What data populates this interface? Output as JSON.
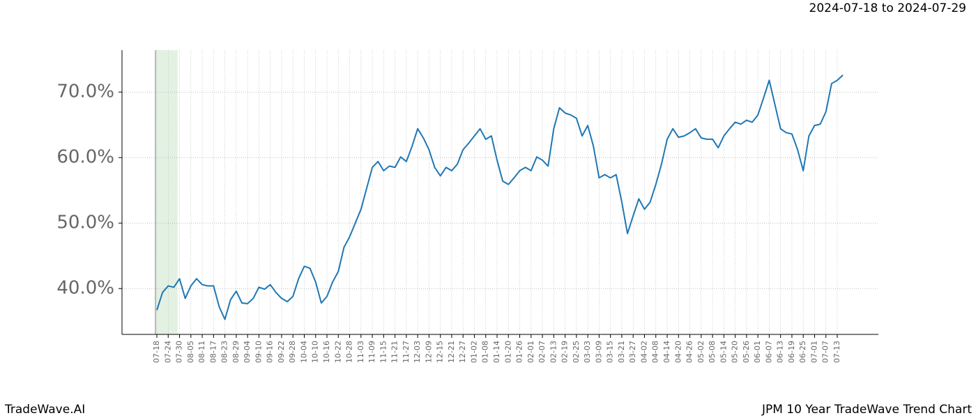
{
  "chart_data": {
    "type": "line",
    "title": "JPM 10 Year TradeWave Trend Chart",
    "subtitle": "2024-07-18 to 2024-07-29",
    "source": "TradeWave.AI",
    "categories": [
      "07-18",
      null,
      "07-24",
      null,
      "07-30",
      null,
      "08-05",
      null,
      "08-11",
      null,
      "08-17",
      null,
      "08-23",
      null,
      "08-29",
      null,
      "09-04",
      null,
      "09-10",
      null,
      "09-16",
      null,
      "09-22",
      null,
      "09-28",
      null,
      "10-04",
      null,
      "10-10",
      null,
      "10-16",
      null,
      "10-22",
      null,
      "10-28",
      null,
      "11-03",
      null,
      "11-09",
      null,
      "11-15",
      null,
      "11-21",
      null,
      "11-27",
      null,
      "12-03",
      null,
      "12-09",
      null,
      "12-15",
      null,
      "12-21",
      null,
      "12-27",
      null,
      "01-02",
      null,
      "01-08",
      null,
      "01-14",
      null,
      "01-20",
      null,
      "01-26",
      null,
      "02-01",
      null,
      "02-07",
      null,
      "02-13",
      null,
      "02-19",
      null,
      "02-25",
      null,
      "03-03",
      null,
      "03-09",
      null,
      "03-15",
      null,
      "03-21",
      null,
      "03-27",
      null,
      "04-02",
      null,
      "04-08",
      null,
      "04-14",
      null,
      "04-20",
      null,
      "04-26",
      null,
      "05-02",
      null,
      "05-08",
      null,
      "05-14",
      null,
      "05-20",
      null,
      "05-26",
      null,
      "06-01",
      null,
      "06-07",
      null,
      "06-13",
      null,
      "06-19",
      null,
      "06-25",
      null,
      "07-01",
      null,
      "07-07",
      null,
      "07-13",
      null
    ],
    "values": [
      36.7,
      39.4,
      40.4,
      40.2,
      41.5,
      38.5,
      40.4,
      41.5,
      40.6,
      40.4,
      40.4,
      37.2,
      35.3,
      38.3,
      39.6,
      37.8,
      37.7,
      38.5,
      40.2,
      39.9,
      40.6,
      39.4,
      38.5,
      38.0,
      38.8,
      41.5,
      43.4,
      43.1,
      41.0,
      37.8,
      38.8,
      41.0,
      42.6,
      46.3,
      47.9,
      50.0,
      52.1,
      55.3,
      58.5,
      59.4,
      58.0,
      58.7,
      58.5,
      60.1,
      59.4,
      61.7,
      64.4,
      63.0,
      61.2,
      58.5,
      57.2,
      58.5,
      58.0,
      59.0,
      61.2,
      62.2,
      63.3,
      64.4,
      62.8,
      63.3,
      59.6,
      56.4,
      55.9,
      56.9,
      58.0,
      58.5,
      58.0,
      60.1,
      59.6,
      58.7,
      64.4,
      67.6,
      66.8,
      66.5,
      66.0,
      63.3,
      64.9,
      61.7,
      56.9,
      57.4,
      56.9,
      57.4,
      53.2,
      48.4,
      51.1,
      53.7,
      52.1,
      53.2,
      55.9,
      59.0,
      62.8,
      64.4,
      63.1,
      63.3,
      63.8,
      64.4,
      63.0,
      62.8,
      62.8,
      61.5,
      63.3,
      64.4,
      65.4,
      65.1,
      65.7,
      65.4,
      66.5,
      69.1,
      71.8,
      68.1,
      64.4,
      63.8,
      63.6,
      61.2,
      58.0,
      63.3,
      64.9,
      65.1,
      67.0,
      71.3,
      71.8,
      72.6
    ],
    "color": "#1f77b4",
    "highlight_color": "#e3f1e3",
    "ylim": [
      33.0,
      76.4
    ],
    "yticks": [
      {
        "value": 40,
        "label": "40.0%"
      },
      {
        "value": 50,
        "label": "50.0%"
      },
      {
        "value": 60,
        "label": "60.0%"
      },
      {
        "value": 70,
        "label": "70.0%"
      }
    ],
    "grid": true
  }
}
